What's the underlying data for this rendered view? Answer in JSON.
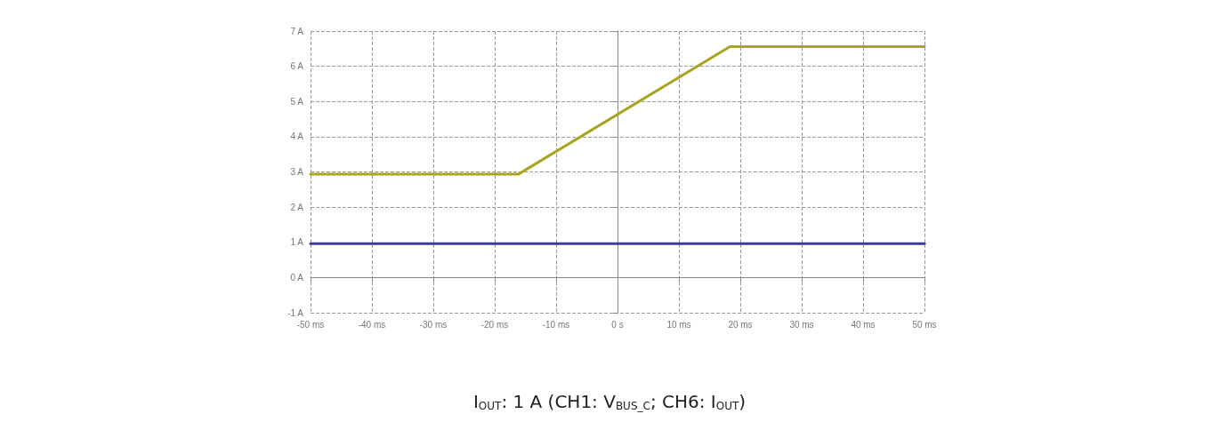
{
  "chart_data": {
    "type": "line",
    "title": "I$_{OUT}$: 1 A (CH1: V$_{BUS_C}$; CH6: I$_{OUT}$)",
    "x": [
      -50,
      -16.1,
      18.3,
      50
    ],
    "series": [
      {
        "color": "#a8a420",
        "values": [
          2.94,
          2.94,
          6.56,
          6.56
        ]
      },
      {
        "color": "#3d3d9e",
        "x": [
          -50,
          50
        ],
        "values": [
          0.96,
          0.96
        ]
      }
    ],
    "xlim": [
      -50,
      50
    ],
    "xticks": [
      {
        "value": -50,
        "label": "-50 ms"
      },
      {
        "value": -40,
        "label": "-40 ms"
      },
      {
        "value": -30,
        "label": "-30 ms"
      },
      {
        "value": -20,
        "label": "-20 ms"
      },
      {
        "value": -10,
        "label": "-10 ms"
      },
      {
        "value": 0,
        "label": "0 s"
      },
      {
        "value": 10,
        "label": "10 ms"
      },
      {
        "value": 20,
        "label": "20 ms"
      },
      {
        "value": 30,
        "label": "30 ms"
      },
      {
        "value": 40,
        "label": "40 ms"
      },
      {
        "value": 50,
        "label": "50 ms"
      }
    ],
    "ylim": [
      -1,
      7
    ],
    "yticks": [
      {
        "value": -1,
        "label": "-1 A"
      },
      {
        "value": 0,
        "label": "0 A"
      },
      {
        "value": 1,
        "label": "1 A"
      },
      {
        "value": 2,
        "label": "2 A"
      },
      {
        "value": 3,
        "label": "3 A"
      },
      {
        "value": 4,
        "label": "4 A"
      },
      {
        "value": 5,
        "label": "5 A"
      },
      {
        "value": 6,
        "label": "6 A"
      },
      {
        "value": 7,
        "label": "7 A"
      }
    ],
    "grid": true,
    "marker": "none",
    "line_style": "solid"
  }
}
